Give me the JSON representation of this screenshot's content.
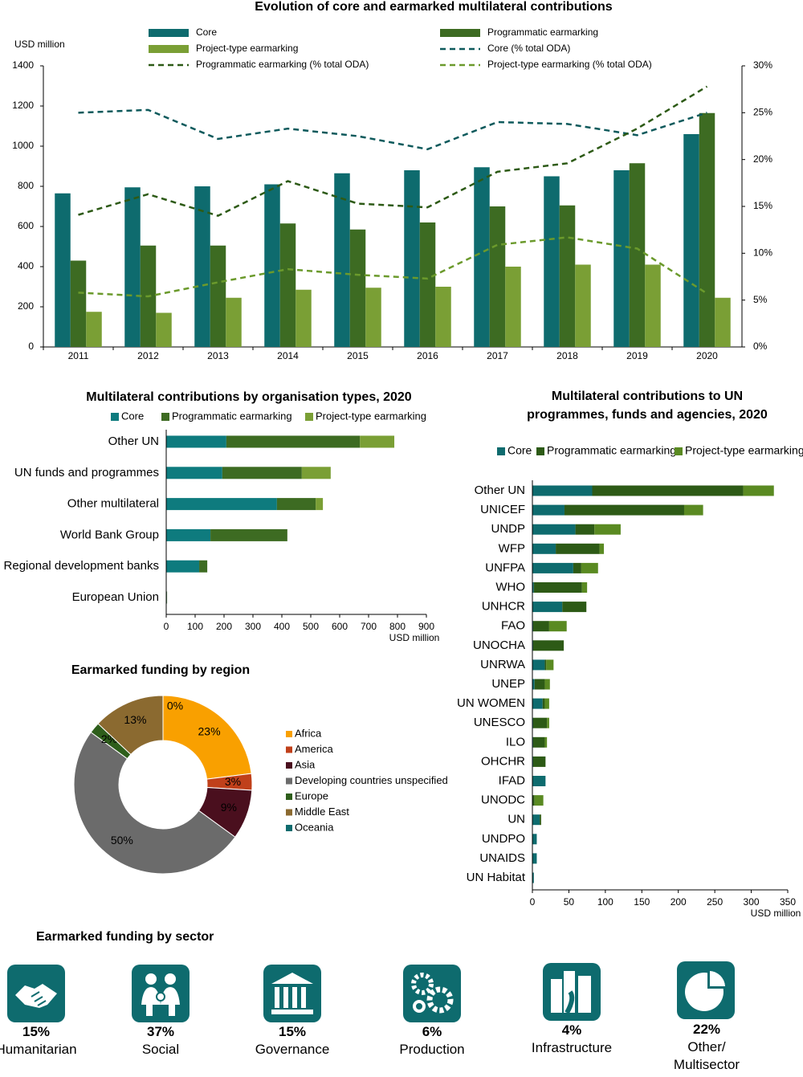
{
  "chart_data": [
    {
      "type": "bar",
      "title": "Evolution of core and earmarked multilateral contributions",
      "y_label": "USD million",
      "categories": [
        "2011",
        "2012",
        "2013",
        "2014",
        "2015",
        "2016",
        "2017",
        "2018",
        "2019",
        "2020"
      ],
      "series": [
        {
          "name": "Core",
          "color": "#0e6b6e",
          "values": [
            765,
            795,
            800,
            810,
            865,
            880,
            895,
            850,
            880,
            1060
          ]
        },
        {
          "name": "Programmatic earmarking",
          "color": "#3d6b22",
          "values": [
            430,
            505,
            505,
            615,
            585,
            620,
            700,
            705,
            915,
            1165
          ]
        },
        {
          "name": "Project-type earmarking",
          "color": "#7a9f35",
          "values": [
            175,
            170,
            245,
            285,
            295,
            300,
            400,
            410,
            410,
            245
          ]
        },
        {
          "name": "Core (% total ODA)",
          "color": "#0e5a5c",
          "type": "line",
          "style": "dashed",
          "axis": "y2",
          "values": [
            25.0,
            25.3,
            22.2,
            23.3,
            22.5,
            21.1,
            24.0,
            23.8,
            22.6,
            25.0
          ]
        },
        {
          "name": "Programmatic earmarking (% total ODA)",
          "color": "#2d5a16",
          "type": "line",
          "style": "dashed",
          "axis": "y2",
          "values": [
            14.1,
            16.3,
            14.0,
            17.7,
            15.3,
            14.9,
            18.7,
            19.6,
            23.3,
            27.8
          ]
        },
        {
          "name": "Project-type earmarking (% total ODA)",
          "color": "#6b9a2c",
          "type": "line",
          "style": "dashed",
          "axis": "y2",
          "values": [
            5.8,
            5.4,
            6.9,
            8.3,
            7.7,
            7.3,
            10.9,
            11.7,
            10.5,
            5.7
          ]
        }
      ],
      "ylim": [
        0,
        1400
      ],
      "yticks": [
        0,
        200,
        400,
        600,
        800,
        1000,
        1200,
        1400
      ],
      "y2lim": [
        0,
        30
      ],
      "y2ticks": [
        {
          "value": 0,
          "label": "0%"
        },
        {
          "value": 5,
          "label": "5%"
        },
        {
          "value": 10,
          "label": "10%"
        },
        {
          "value": 15,
          "label": "15%"
        },
        {
          "value": 20,
          "label": "20%"
        },
        {
          "value": 25,
          "label": "25%"
        },
        {
          "value": 30,
          "label": "30%"
        }
      ]
    },
    {
      "type": "barh",
      "stacked": true,
      "title": "Multilateral contributions by organisation types, 2020",
      "x_label": "USD million",
      "categories": [
        "Other UN",
        "UN funds and programmes",
        "Other multilateral",
        "World Bank Group",
        "Regional development banks",
        "European Union"
      ],
      "series": [
        {
          "name": "Core",
          "color": "#0e7b7e",
          "values": [
            208,
            194,
            383,
            153,
            114,
            2
          ]
        },
        {
          "name": "Programmatic earmarking",
          "color": "#3d6b22",
          "values": [
            462,
            275,
            134,
            266,
            28,
            1
          ]
        },
        {
          "name": "Project-type earmarking",
          "color": "#7a9f35",
          "values": [
            119,
            100,
            25,
            0,
            0,
            0
          ]
        }
      ],
      "xlim": [
        0,
        900
      ],
      "xticks": [
        0,
        100,
        200,
        300,
        400,
        500,
        600,
        700,
        800,
        900
      ]
    },
    {
      "type": "barh",
      "stacked": true,
      "title": [
        "Multilateral contributions to UN",
        "programmes, funds and agencies, 2020"
      ],
      "x_label": "USD million",
      "categories": [
        "Other UN",
        "UNICEF",
        "UNDP",
        "WFP",
        "UNFPA",
        "WHO",
        "UNHCR",
        "FAO",
        "UNOCHA",
        "UNRWA",
        "UNEP",
        "UN WOMEN",
        "UNESCO",
        "ILO",
        "OHCHR",
        "IFAD",
        "UNODC",
        "UN",
        "UNDPO",
        "UNAIDS",
        "UN Habitat"
      ],
      "series": [
        {
          "name": "Core",
          "color": "#0e6b6e",
          "values": [
            82,
            44,
            59,
            32,
            56,
            2,
            41,
            1,
            1,
            17,
            3,
            14,
            1,
            1,
            1,
            18,
            0,
            10,
            6,
            6,
            2
          ]
        },
        {
          "name": "Programmatic earmarking",
          "color": "#2d5a16",
          "values": [
            207,
            164,
            26,
            60,
            11,
            66,
            33,
            22,
            42,
            2,
            14,
            3,
            19,
            16,
            17,
            0,
            3,
            2,
            0,
            0,
            0
          ]
        },
        {
          "name": "Project-type earmarking",
          "color": "#5a8a22",
          "values": [
            42,
            26,
            36,
            6,
            23,
            7,
            0,
            24,
            0,
            10,
            7,
            6,
            3,
            3,
            0,
            0,
            12,
            0,
            0,
            0,
            0
          ]
        }
      ],
      "xlim": [
        0,
        350
      ],
      "xticks": [
        0,
        50,
        100,
        150,
        200,
        250,
        300,
        350
      ]
    },
    {
      "type": "donut",
      "title": "Earmarked funding by region",
      "categories": [
        "Africa",
        "America",
        "Asia",
        "Developing countries unspecified",
        "Europe",
        "Middle East",
        "Oceania"
      ],
      "values": [
        23,
        3,
        9,
        50,
        2,
        13,
        0
      ],
      "value_labels": [
        "23%",
        "3%",
        "9%",
        "50%",
        "2%",
        "13%",
        "0%"
      ],
      "colors": [
        "#f9a000",
        "#c0401a",
        "#4a0f1e",
        "#6b6b6b",
        "#2e5e1b",
        "#8b6a30",
        "#0e6b6e"
      ]
    }
  ],
  "sectors": {
    "title": "Earmarked funding by sector",
    "items": [
      {
        "share": "15%",
        "name": "Humanitarian"
      },
      {
        "share": "37%",
        "name": "Social"
      },
      {
        "share": "15%",
        "name": "Governance"
      },
      {
        "share": "6%",
        "name": "Production"
      },
      {
        "share": "4%",
        "name": "Infrastructure"
      },
      {
        "share": "22%",
        "name": "Other/ Multisector"
      }
    ]
  }
}
